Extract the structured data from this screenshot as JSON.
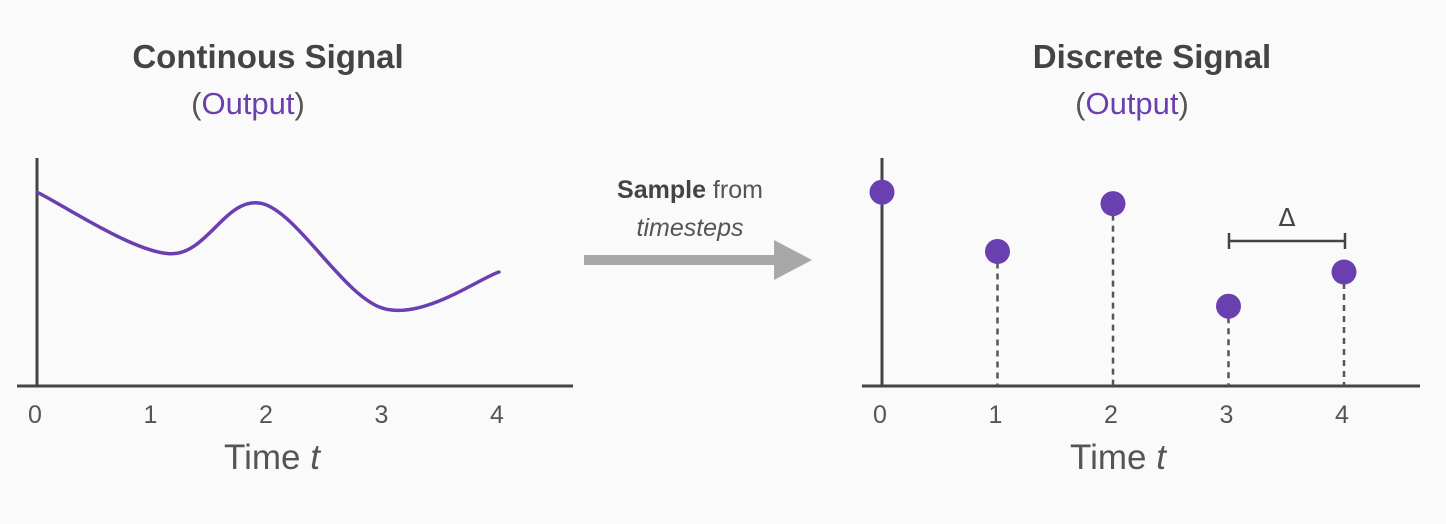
{
  "left_panel": {
    "title": "Continous Signal",
    "subtitle": {
      "open": "(",
      "word": "Output",
      "close": ")"
    },
    "ticks": [
      "0",
      "1",
      "2",
      "3",
      "4"
    ],
    "xlabel": {
      "text": "Time ",
      "var": "t"
    }
  },
  "right_panel": {
    "title": "Discrete Signal",
    "subtitle": {
      "open": "(",
      "word": "Output",
      "close": ")"
    },
    "ticks": [
      "0",
      "1",
      "2",
      "3",
      "4"
    ],
    "xlabel": {
      "text": "Time ",
      "var": "t"
    },
    "interval_label": "Δ"
  },
  "arrow": {
    "line1_bold": "Sample",
    "line1_rest": " from",
    "line2": "timesteps"
  },
  "colors": {
    "signal": "#6a3fb0",
    "axis": "#444444",
    "arrow": "#a8a8a8",
    "stem": "#555555"
  },
  "chart_data": [
    {
      "type": "line",
      "x": [
        0,
        1.15,
        1.95,
        3.0,
        4.0
      ],
      "y": [
        0.85,
        0.58,
        0.8,
        0.34,
        0.5
      ],
      "xlim": [
        0,
        4.6
      ],
      "ylim": [
        0,
        1
      ],
      "title": "Continous Signal",
      "xlabel": "Time t",
      "xticks": [
        0,
        1,
        2,
        3,
        4
      ]
    },
    {
      "type": "scatter",
      "x": [
        0,
        1,
        2,
        3,
        4
      ],
      "y": [
        0.85,
        0.59,
        0.8,
        0.35,
        0.5
      ],
      "xlim": [
        0,
        4.6
      ],
      "ylim": [
        0,
        1
      ],
      "title": "Discrete Signal",
      "xlabel": "Time t",
      "xticks": [
        0,
        1,
        2,
        3,
        4
      ],
      "annotation": "Δ"
    }
  ]
}
